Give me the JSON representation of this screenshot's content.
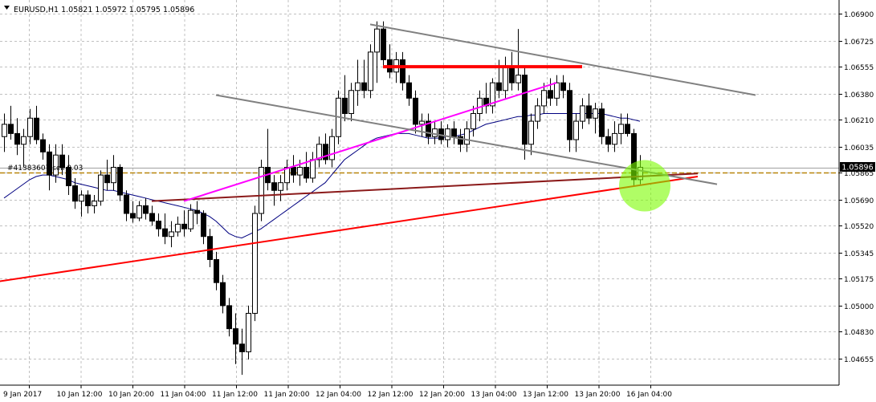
{
  "window": {
    "symbol_info": "EURUSD,H1  1.05821 1.05972 1.05795 1.05896",
    "order_label": "#41383607 sell 0.03",
    "current_price_label": "1.05896"
  },
  "chart_data": {
    "type": "candlestick",
    "symbol": "EURUSD",
    "timeframe": "H1",
    "ohlc_header": {
      "open": 1.05821,
      "high": 1.05972,
      "low": 1.05795,
      "close": 1.05896
    },
    "ylim": [
      1.0452,
      1.0698
    ],
    "y_ticks": [
      "1.06900",
      "1.06725",
      "1.06555",
      "1.06380",
      "1.06210",
      "1.06035",
      "1.05865",
      "1.05690",
      "1.05520",
      "1.05345",
      "1.05175",
      "1.05000",
      "1.04830",
      "1.04655"
    ],
    "x_tick_labels": [
      "9 Jan 2017",
      "10 Jan 12:00",
      "10 Jan 20:00",
      "11 Jan 04:00",
      "11 Jan 12:00",
      "11 Jan 20:00",
      "12 Jan 04:00",
      "12 Jan 12:00",
      "12 Jan 20:00",
      "13 Jan 04:00",
      "13 Jan 12:00",
      "13 Jan 20:00",
      "16 Jan 04:00"
    ],
    "grid": true,
    "current_price": 1.05896,
    "order_price": 1.05865,
    "candles": [
      [
        1.061,
        1.0625,
        1.06,
        1.0618
      ],
      [
        1.0618,
        1.063,
        1.0608,
        1.0612
      ],
      [
        1.0612,
        1.0622,
        1.0598,
        1.0605
      ],
      [
        1.0605,
        1.0615,
        1.059,
        1.061
      ],
      [
        1.061,
        1.0628,
        1.0605,
        1.0622
      ],
      [
        1.0622,
        1.063,
        1.0605,
        1.0608
      ],
      [
        1.0608,
        1.0612,
        1.0595,
        1.06
      ],
      [
        1.06,
        1.0605,
        1.0575,
        1.0585
      ],
      [
        1.0585,
        1.0605,
        1.058,
        1.0598
      ],
      [
        1.0598,
        1.0605,
        1.0585,
        1.059
      ],
      [
        1.059,
        1.0598,
        1.0572,
        1.0578
      ],
      [
        1.0578,
        1.0583,
        1.0563,
        1.0568
      ],
      [
        1.0568,
        1.0575,
        1.0558,
        1.0572
      ],
      [
        1.0572,
        1.0575,
        1.056,
        1.0565
      ],
      [
        1.0565,
        1.0572,
        1.056,
        1.0568
      ],
      [
        1.0568,
        1.0588,
        1.0565,
        1.0585
      ],
      [
        1.0585,
        1.0595,
        1.0575,
        1.058
      ],
      [
        1.058,
        1.0598,
        1.0575,
        1.059
      ],
      [
        1.059,
        1.0592,
        1.0568,
        1.0572
      ],
      [
        1.0572,
        1.0575,
        1.0555,
        1.056
      ],
      [
        1.056,
        1.0568,
        1.0554,
        1.0557
      ],
      [
        1.0557,
        1.0568,
        1.0555,
        1.0565
      ],
      [
        1.0565,
        1.057,
        1.0556,
        1.056
      ],
      [
        1.056,
        1.0565,
        1.0552,
        1.0555
      ],
      [
        1.0555,
        1.056,
        1.0545,
        1.055
      ],
      [
        1.055,
        1.056,
        1.054,
        1.0545
      ],
      [
        1.0545,
        1.0555,
        1.0538,
        1.0548
      ],
      [
        1.0548,
        1.0558,
        1.0545,
        1.0553
      ],
      [
        1.0553,
        1.0562,
        1.0545,
        1.055
      ],
      [
        1.055,
        1.0566,
        1.0548,
        1.0562
      ],
      [
        1.0562,
        1.0568,
        1.0553,
        1.056
      ],
      [
        1.056,
        1.0562,
        1.054,
        1.0545
      ],
      [
        1.0545,
        1.055,
        1.0525,
        1.053
      ],
      [
        1.053,
        1.0535,
        1.051,
        1.0515
      ],
      [
        1.0515,
        1.052,
        1.0495,
        1.05
      ],
      [
        1.05,
        1.0505,
        1.048,
        1.0485
      ],
      [
        1.0485,
        1.0495,
        1.0462,
        1.0475
      ],
      [
        1.0475,
        1.0485,
        1.0455,
        1.047
      ],
      [
        1.047,
        1.05,
        1.0465,
        1.0495
      ],
      [
        1.0495,
        1.0565,
        1.049,
        1.056
      ],
      [
        1.056,
        1.0595,
        1.0555,
        1.059
      ],
      [
        1.059,
        1.0615,
        1.0575,
        1.058
      ],
      [
        1.058,
        1.0585,
        1.0565,
        1.0575
      ],
      [
        1.0575,
        1.0585,
        1.0568,
        1.058
      ],
      [
        1.058,
        1.0595,
        1.0575,
        1.059
      ],
      [
        1.059,
        1.0598,
        1.058,
        1.0585
      ],
      [
        1.0585,
        1.0595,
        1.0578,
        1.059
      ],
      [
        1.059,
        1.06,
        1.058,
        1.0583
      ],
      [
        1.0583,
        1.06,
        1.058,
        1.0595
      ],
      [
        1.0595,
        1.061,
        1.059,
        1.0605
      ],
      [
        1.0605,
        1.0612,
        1.0592,
        1.0595
      ],
      [
        1.0595,
        1.0615,
        1.059,
        1.061
      ],
      [
        1.061,
        1.064,
        1.0605,
        1.0635
      ],
      [
        1.0635,
        1.065,
        1.062,
        1.0625
      ],
      [
        1.0625,
        1.0645,
        1.062,
        1.064
      ],
      [
        1.064,
        1.066,
        1.063,
        1.0645
      ],
      [
        1.0645,
        1.066,
        1.0635,
        1.064
      ],
      [
        1.064,
        1.067,
        1.0635,
        1.0665
      ],
      [
        1.0665,
        1.0685,
        1.0645,
        1.068
      ],
      [
        1.068,
        1.0685,
        1.0655,
        1.066
      ],
      [
        1.066,
        1.067,
        1.0648,
        1.0652
      ],
      [
        1.0652,
        1.0665,
        1.0645,
        1.066
      ],
      [
        1.066,
        1.0665,
        1.064,
        1.0645
      ],
      [
        1.0645,
        1.065,
        1.063,
        1.0635
      ],
      [
        1.0635,
        1.064,
        1.0612,
        1.0618
      ],
      [
        1.0618,
        1.0625,
        1.061,
        1.062
      ],
      [
        1.062,
        1.0625,
        1.0605,
        1.061
      ],
      [
        1.061,
        1.062,
        1.0605,
        1.0615
      ],
      [
        1.0615,
        1.062,
        1.0605,
        1.0608
      ],
      [
        1.0608,
        1.0618,
        1.0603,
        1.0615
      ],
      [
        1.0615,
        1.062,
        1.0605,
        1.061
      ],
      [
        1.061,
        1.0615,
        1.06,
        1.0605
      ],
      [
        1.0605,
        1.062,
        1.06,
        1.0615
      ],
      [
        1.0615,
        1.063,
        1.061,
        1.0625
      ],
      [
        1.0625,
        1.064,
        1.062,
        1.0635
      ],
      [
        1.0635,
        1.0645,
        1.0625,
        1.063
      ],
      [
        1.063,
        1.0648,
        1.0625,
        1.0645
      ],
      [
        1.0645,
        1.066,
        1.0635,
        1.064
      ],
      [
        1.064,
        1.0662,
        1.0635,
        1.0655
      ],
      [
        1.0655,
        1.0665,
        1.064,
        1.0645
      ],
      [
        1.0645,
        1.068,
        1.064,
        1.065
      ],
      [
        1.065,
        1.0655,
        1.0595,
        1.0605
      ],
      [
        1.0605,
        1.0625,
        1.0598,
        1.062
      ],
      [
        1.062,
        1.0635,
        1.0615,
        1.063
      ],
      [
        1.063,
        1.0645,
        1.0625,
        1.064
      ],
      [
        1.064,
        1.0648,
        1.063,
        1.0635
      ],
      [
        1.0635,
        1.065,
        1.063,
        1.0645
      ],
      [
        1.0645,
        1.065,
        1.0635,
        1.064
      ],
      [
        1.064,
        1.0645,
        1.06,
        1.0608
      ],
      [
        1.0608,
        1.0625,
        1.06,
        1.062
      ],
      [
        1.062,
        1.0635,
        1.0615,
        1.063
      ],
      [
        1.063,
        1.0638,
        1.0618,
        1.0622
      ],
      [
        1.0622,
        1.0632,
        1.0612,
        1.0628
      ],
      [
        1.0628,
        1.0632,
        1.0605,
        1.061
      ],
      [
        1.061,
        1.0615,
        1.06,
        1.0605
      ],
      [
        1.0605,
        1.062,
        1.06,
        1.0612
      ],
      [
        1.0612,
        1.0625,
        1.0605,
        1.0618
      ],
      [
        1.0618,
        1.0625,
        1.061,
        1.0612
      ],
      [
        1.0612,
        1.0615,
        1.0578,
        1.0582
      ],
      [
        1.0582,
        1.0598,
        1.0579,
        1.059
      ]
    ],
    "moving_average": [
      1.057,
      1.0573,
      1.0576,
      1.0579,
      1.0582,
      1.0584,
      1.0585,
      1.0585,
      1.0584,
      1.0583,
      1.0582,
      1.058,
      1.0579,
      1.0578,
      1.0577,
      1.0576,
      1.0575,
      1.0575,
      1.0574,
      1.0573,
      1.0572,
      1.0571,
      1.057,
      1.0569,
      1.0568,
      1.0567,
      1.0566,
      1.0565,
      1.0564,
      1.0563,
      1.0562,
      1.056,
      1.0558,
      1.0555,
      1.0551,
      1.0547,
      1.0545,
      1.0544,
      1.0546,
      1.0548,
      1.055,
      1.0553,
      1.0556,
      1.0559,
      1.0562,
      1.0565,
      1.0568,
      1.0571,
      1.0574,
      1.0577,
      1.058,
      1.0585,
      1.059,
      1.0595,
      1.0598,
      1.0601,
      1.0604,
      1.0607,
      1.0609,
      1.061,
      1.0611,
      1.0612,
      1.0612,
      1.0612,
      1.0611,
      1.061,
      1.0609,
      1.0609,
      1.0609,
      1.061,
      1.061,
      1.0611,
      1.0612,
      1.0614,
      1.0616,
      1.0618,
      1.0619,
      1.062,
      1.0621,
      1.0622,
      1.0623,
      1.0623,
      1.0624,
      1.0624,
      1.0625,
      1.0625,
      1.0625,
      1.0625,
      1.0625,
      1.0625,
      1.0625,
      1.0625,
      1.0625,
      1.0625,
      1.0624,
      1.0623,
      1.0622,
      1.0622,
      1.0621,
      1.062
    ],
    "drawings": [
      {
        "type": "trendline",
        "color": "#ff0000",
        "from": [
          -2,
          1.0515
        ],
        "to": [
          108,
          1.0584
        ]
      },
      {
        "type": "trendline",
        "color": "#8b1a1a",
        "from": [
          23,
          1.0568
        ],
        "to": [
          108,
          1.0586
        ]
      },
      {
        "type": "trendline",
        "color": "#ff00ff",
        "from": [
          28,
          1.0568
        ],
        "to": [
          86,
          1.0645
        ]
      },
      {
        "type": "trendline",
        "color": "#808080",
        "from": [
          33,
          1.0637
        ],
        "to": [
          111,
          1.0579
        ]
      },
      {
        "type": "trendline",
        "color": "#808080",
        "from": [
          57,
          1.0683
        ],
        "to": [
          117,
          1.0637
        ]
      },
      {
        "type": "hline",
        "color": "#ff0000",
        "from": [
          59,
          1.06555
        ],
        "to": [
          90,
          1.06555
        ]
      }
    ]
  },
  "colors": {
    "background": "#ffffff",
    "grid": "#c0c0c0",
    "candle_up": "#ffffff",
    "candle_down": "#000000",
    "moving_average": "#000080",
    "order_line": "#b8860b",
    "current_price_tag": "#000000",
    "highlight_circle": "#7cfc00"
  }
}
